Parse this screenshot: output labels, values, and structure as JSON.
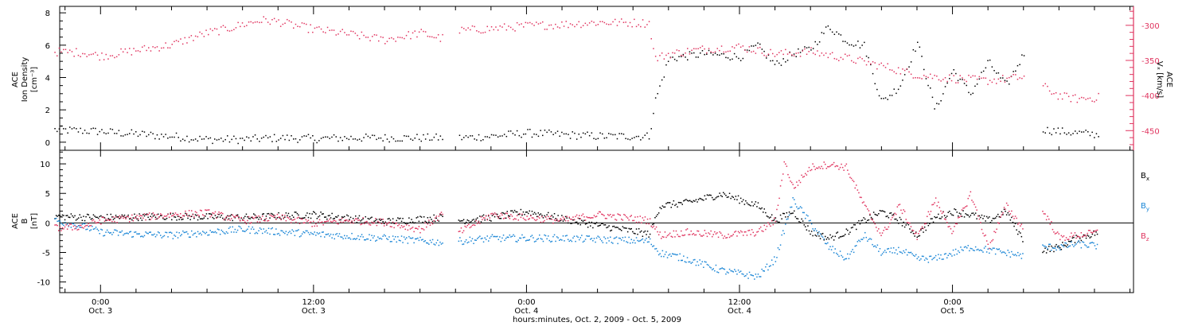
{
  "colors": {
    "black": "#000000",
    "pink": "#e0345f",
    "blue": "#1a86d6"
  },
  "chart_data": [
    {
      "type": "scatter",
      "panel": "top",
      "ylabel_left": [
        "ACE",
        "Ion Density",
        "[cm⁻³]"
      ],
      "ylabel_right": [
        "ACE",
        "Vₓ [km/s]"
      ],
      "left_ylim": [
        -0.5,
        8.4
      ],
      "left_yticks": [
        0,
        2,
        4,
        6,
        8
      ],
      "right_ylim": [
        -478,
        -273
      ],
      "right_yticks": [
        -300,
        -350,
        -400,
        -450
      ],
      "gaps_hours": [
        [
          19.3,
          20.1
        ],
        [
          52.0,
          53.0
        ]
      ],
      "series": [
        {
          "axis": "left",
          "color": "black",
          "x": [
            -2.6,
            0,
            1,
            2,
            3,
            4,
            5,
            6,
            7,
            8,
            10,
            12,
            14,
            16,
            18,
            19.2,
            20.2,
            22,
            24,
            26,
            28,
            30.9,
            31.2,
            32,
            34,
            36,
            37,
            38,
            39,
            40,
            41,
            42,
            43,
            44,
            45,
            46,
            47,
            48,
            49,
            50,
            51,
            52,
            53.1,
            54,
            55,
            56.2
          ],
          "y": [
            0.8,
            0.7,
            0.6,
            0.55,
            0.45,
            0.4,
            0.3,
            0.2,
            0.2,
            0.2,
            0.3,
            0.25,
            0.3,
            0.3,
            0.3,
            0.3,
            0.3,
            0.4,
            0.6,
            0.5,
            0.4,
            0.4,
            2.5,
            5.2,
            5.5,
            5.3,
            6.0,
            4.8,
            5.5,
            5.8,
            7.2,
            6.3,
            6.0,
            2.5,
            3.5,
            6.2,
            2.0,
            4.5,
            3.0,
            5.0,
            3.5,
            5.5,
            0.8,
            0.7,
            0.6,
            0.5
          ]
        },
        {
          "axis": "right",
          "color": "pink",
          "x": [
            -2.6,
            -1,
            0,
            2,
            4,
            5,
            6,
            7,
            8,
            9,
            10,
            11,
            12,
            14,
            16,
            18,
            19.2,
            20.2,
            22,
            24,
            26,
            28,
            30.9,
            31.2,
            32,
            34,
            36,
            38,
            40,
            42,
            44,
            46,
            48,
            50,
            52,
            53,
            54,
            55,
            56.2
          ],
          "y": [
            -337,
            -338,
            -343,
            -335,
            -327,
            -318,
            -310,
            -305,
            -298,
            -292,
            -294,
            -300,
            -305,
            -312,
            -320,
            -310,
            -318,
            -307,
            -304,
            -300,
            -298,
            -295,
            -296,
            -347,
            -340,
            -333,
            -330,
            -340,
            -337,
            -346,
            -357,
            -370,
            -375,
            -378,
            -373,
            -385,
            -400,
            -404,
            -402
          ]
        }
      ]
    },
    {
      "type": "scatter",
      "panel": "bottom",
      "ylabel_left": [
        "ACE",
        "B",
        "[nT]"
      ],
      "ylim": [
        -11.8,
        12.3
      ],
      "yticks": [
        10,
        5,
        0,
        -5,
        -10
      ],
      "zero_line": true,
      "legend_placement": "right",
      "gaps_hours": [
        [
          19.3,
          20.1
        ],
        [
          52.0,
          53.0
        ]
      ],
      "series": [
        {
          "name": "Bx",
          "color": "black",
          "x": [
            -2.6,
            0,
            4,
            8,
            12,
            16,
            19.2,
            20.2,
            22,
            24,
            27,
            30.9,
            31.5,
            33,
            35,
            37,
            38,
            39,
            40,
            41,
            42,
            43,
            44,
            45,
            46,
            47,
            48,
            49,
            50,
            51,
            52,
            53.1,
            54,
            55,
            56.2
          ],
          "y": [
            1.2,
            1.0,
            1.2,
            1.0,
            1.5,
            0.3,
            1.0,
            0.5,
            1.0,
            2.0,
            0.2,
            -1.8,
            3.0,
            3.5,
            5.0,
            3.0,
            0.5,
            2.0,
            -1.5,
            -2.5,
            -1.5,
            0.5,
            2.0,
            0.5,
            -2.0,
            1.0,
            2.0,
            1.5,
            0.5,
            2.0,
            -3.0,
            -4.5,
            -4.0,
            -2.5,
            -1.5
          ]
        },
        {
          "name": "By",
          "color": "blue",
          "x": [
            -2.6,
            -1,
            0,
            2,
            4,
            8,
            12,
            16,
            19.2,
            20.2,
            22,
            26,
            30.9,
            31.5,
            33,
            35,
            36,
            37,
            38,
            39,
            40,
            41,
            42,
            43,
            44,
            45,
            46,
            47,
            48,
            49,
            50,
            51,
            52,
            53.1,
            54,
            55,
            56.2
          ],
          "y": [
            0.5,
            -0.5,
            -1.5,
            -1.8,
            -2.0,
            -1.0,
            -1.8,
            -2.5,
            -3.2,
            -3.0,
            -2.5,
            -2.5,
            -3.0,
            -5.0,
            -6.0,
            -8.0,
            -8.5,
            -9.0,
            -6.0,
            4.0,
            0.0,
            -4.0,
            -6.0,
            -2.0,
            -5.0,
            -4.5,
            -6.0,
            -6.0,
            -5.0,
            -4.0,
            -4.5,
            -5.0,
            -5.5,
            -4.0,
            -4.0,
            -3.5,
            -3.8
          ]
        },
        {
          "name": "Bz",
          "color": "pink",
          "x": [
            -2.6,
            -1,
            0,
            2,
            4,
            6,
            8,
            10,
            12,
            14,
            16,
            18,
            19.2,
            20.2,
            22,
            24,
            26,
            28,
            30.9,
            31.5,
            33,
            35,
            37,
            38,
            38.5,
            39,
            40,
            41,
            42,
            43,
            44,
            45,
            46,
            47,
            48,
            49,
            50,
            51,
            52,
            53.1,
            54,
            55,
            56.2
          ],
          "y": [
            -0.8,
            -0.5,
            0.5,
            1.0,
            1.5,
            1.8,
            0.5,
            1.0,
            0.0,
            0.5,
            0.2,
            -1.0,
            1.5,
            -1.5,
            1.5,
            1.0,
            0.5,
            1.5,
            0.5,
            -2.0,
            -1.5,
            -2.0,
            -1.5,
            0.5,
            10.5,
            6.0,
            9.5,
            10.0,
            9.5,
            3.0,
            -2.0,
            3.0,
            -2.5,
            4.0,
            -1.5,
            5.0,
            -4.0,
            3.0,
            -1.0,
            2.0,
            -2.5,
            -2.0,
            -1.5
          ]
        }
      ]
    }
  ],
  "legend": {
    "bx": "B",
    "bx_sub": "x",
    "by": "B",
    "by_sub": "y",
    "bz": "B",
    "bz_sub": "z"
  },
  "x_axis": {
    "range_hours": [
      -2.3,
      58.2
    ],
    "tick_hours": [
      0,
      12,
      24,
      36,
      48
    ],
    "tick_time_labels": [
      "0:00",
      "12:00",
      "0:00",
      "12:00",
      "0:00"
    ],
    "tick_date_labels": [
      "Oct. 3",
      "Oct. 3",
      "Oct. 4",
      "Oct. 4",
      "Oct. 5"
    ],
    "title": "hours:minutes, Oct.  2, 2009 - Oct.  5, 2009"
  }
}
